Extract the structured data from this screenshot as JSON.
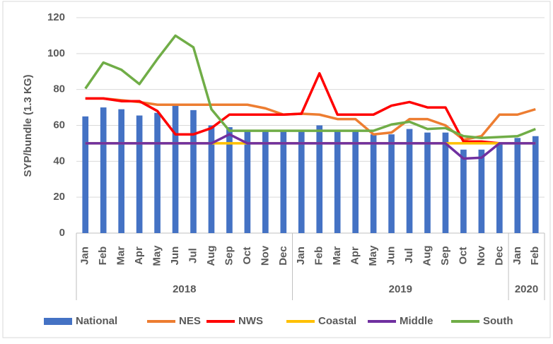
{
  "chart_data": {
    "type": "combo",
    "y_label": "SYP/bundle (1.3 KG)",
    "categories": [
      "Jan",
      "Feb",
      "Mar",
      "Apr",
      "May",
      "Jun",
      "Jul",
      "Aug",
      "Sep",
      "Oct",
      "Nov",
      "Dec",
      "Jan",
      "Feb",
      "Mar",
      "Apr",
      "May",
      "Jun",
      "Jul",
      "Aug",
      "Sep",
      "Oct",
      "Nov",
      "Dec",
      "Jan",
      "Feb"
    ],
    "year_groups": [
      {
        "label": "2018",
        "months": 12
      },
      {
        "label": "2019",
        "months": 12
      },
      {
        "label": "2020",
        "months": 2
      }
    ],
    "ylim": [
      0,
      120
    ],
    "yticks": [
      0,
      20,
      40,
      60,
      80,
      100,
      120
    ],
    "grid": true,
    "legend": "bottom",
    "series": [
      {
        "name": "National",
        "type": "bar",
        "color": "#4472c4",
        "values": [
          65,
          70,
          69,
          65.5,
          67,
          71,
          68.5,
          60,
          59,
          57,
          57,
          57,
          57,
          60,
          57,
          57,
          55,
          55,
          58,
          56,
          56,
          46.5,
          46.5,
          50,
          53,
          54
        ]
      },
      {
        "name": "NES",
        "type": "line",
        "color": "#ed7d31",
        "values": [
          75,
          75,
          74,
          73,
          71.5,
          71.5,
          71.5,
          71.5,
          71.5,
          71.5,
          69.5,
          66,
          66.5,
          66,
          63.5,
          63.5,
          55,
          56,
          63.5,
          63.5,
          60,
          52,
          54,
          66,
          66,
          69
        ]
      },
      {
        "name": "NWS",
        "type": "line",
        "color": "#ff0000",
        "values": [
          75,
          75,
          73.5,
          73.5,
          68,
          55,
          55,
          58.5,
          66,
          66,
          66,
          66,
          66.5,
          89,
          66,
          66,
          66,
          71,
          73,
          70,
          70,
          51,
          51,
          50,
          null,
          null
        ]
      },
      {
        "name": "Coastal",
        "type": "line",
        "color": "#ffc000",
        "values": [
          50,
          50,
          50,
          50,
          50,
          50,
          50,
          50,
          50,
          50,
          50,
          50,
          50,
          50,
          50,
          50,
          50,
          50,
          50,
          50,
          50,
          50,
          50,
          50,
          50,
          50
        ]
      },
      {
        "name": "Middle",
        "type": "line",
        "color": "#7030a0",
        "values": [
          50,
          50,
          50,
          50,
          50,
          50,
          50,
          50,
          55,
          50,
          50,
          50,
          50,
          50,
          50,
          50,
          50,
          50,
          50,
          50,
          50,
          41.5,
          42,
          50,
          50,
          50
        ]
      },
      {
        "name": "South",
        "type": "line",
        "color": "#70ad47",
        "values": [
          80.5,
          95,
          91,
          83,
          97,
          110,
          103.5,
          69,
          57,
          57,
          57,
          57,
          57,
          57,
          57,
          57,
          57,
          60.5,
          62,
          58,
          58.5,
          54,
          53,
          53.5,
          54,
          58
        ]
      }
    ]
  }
}
